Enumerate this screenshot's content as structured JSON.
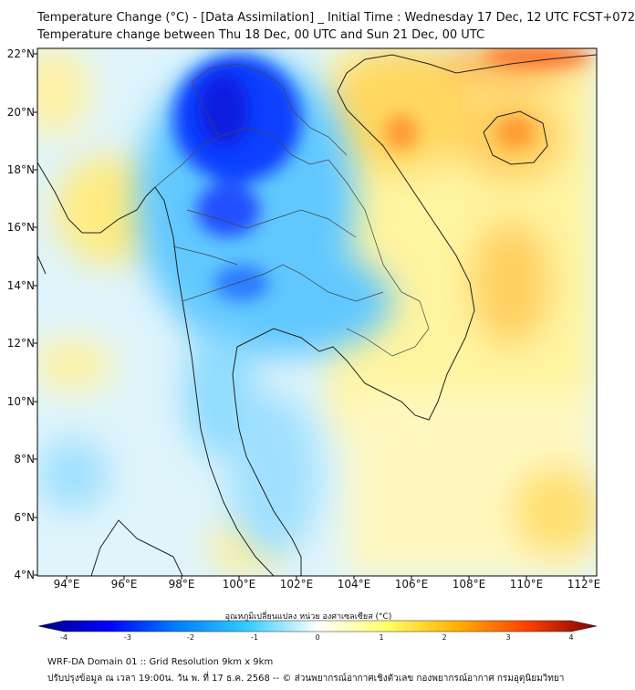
{
  "header": {
    "title_line1": "Temperature Change (°C) - [Data Assimilation] _ Initial Time : Wednesday 17 Dec, 12 UTC FCST+072",
    "title_line2": "Temperature change between Thu 18 Dec, 00 UTC and Sun 21 Dec, 00 UTC"
  },
  "map": {
    "lat_labels": [
      "22°N",
      "20°N",
      "18°N",
      "16°N",
      "14°N",
      "12°N",
      "10°N",
      "8°N",
      "6°N",
      "4°N"
    ],
    "lon_labels": [
      "94°E",
      "96°E",
      "98°E",
      "100°E",
      "102°E",
      "104°E",
      "106°E",
      "108°E",
      "110°E",
      "112°E"
    ],
    "lat_range": [
      4,
      22
    ],
    "lon_range": [
      93,
      112.5
    ]
  },
  "colorbar": {
    "title": "อุณหภูมิเปลี่ยนแปลง หน่วย องศาเซลเซียส (°C)",
    "ticks": [
      "-4",
      "-3",
      "-2",
      "-1",
      "0",
      "1",
      "2",
      "3",
      "4"
    ],
    "range": [
      -4,
      4
    ],
    "colors": [
      "#00007f",
      "#0000ff",
      "#0080ff",
      "#33ccff",
      "#ffffff",
      "#ffff66",
      "#ffb000",
      "#ff4000",
      "#7f0000"
    ]
  },
  "footer": {
    "line1": "WRF-DA Domain 01 :: Grid Resolution 9km x 9km",
    "line2": "ปรับปรุงข้อมูล ณ เวลา 19:00น. วัน พ. ที่ 17 ธ.ค. 2568 -- © ส่วนพยากรณ์อากาศเชิงตัวเลข กองพยากรณ์อากาศ กรมอุตุนิยมวิทยา"
  }
}
